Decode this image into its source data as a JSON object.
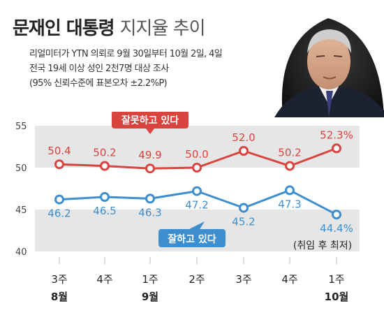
{
  "title": {
    "bold": "문재인 대통령",
    "light": "지지율 추이"
  },
  "source_lines": [
    "리얼미터가 YTN 의뢰로 9월 30일부터 10월 2일, 4일",
    "전국 19세 이상 성인 2천7명 대상 조사",
    "(95% 신뢰수준에 표본오차 ±2.2%P)"
  ],
  "colors": {
    "negative": "#d9443f",
    "positive": "#3d8ecf",
    "band": "#e6e6e6",
    "text": "#222222"
  },
  "chart_data": {
    "type": "line",
    "categories": [
      "3주",
      "4주",
      "1주",
      "2주",
      "3주",
      "4주",
      "1주"
    ],
    "month_labels": [
      {
        "index": 0,
        "label": "8월"
      },
      {
        "index": 2,
        "label": "9월"
      },
      {
        "index": 6,
        "label": "10월"
      }
    ],
    "series": [
      {
        "name": "잘못하고 있다",
        "color": "#d9443f",
        "values": [
          50.4,
          50.2,
          49.9,
          50.0,
          52.0,
          50.2,
          52.3
        ],
        "value_labels": [
          "50.4",
          "50.2",
          "49.9",
          "50.0",
          "52.0",
          "50.2",
          "52.3%"
        ]
      },
      {
        "name": "잘하고 있다",
        "color": "#3d8ecf",
        "values": [
          46.2,
          46.5,
          46.3,
          47.2,
          45.2,
          47.3,
          44.4
        ],
        "value_labels": [
          "46.2",
          "46.5",
          "46.3",
          "47.2",
          "45.2",
          "47.3",
          "44.4%"
        ]
      }
    ],
    "annotation": "(취임 후 최저)",
    "yticks": [
      40,
      45,
      50,
      55
    ],
    "ylim": [
      40,
      55
    ],
    "grid": false,
    "legend": "callout labels on lines"
  }
}
